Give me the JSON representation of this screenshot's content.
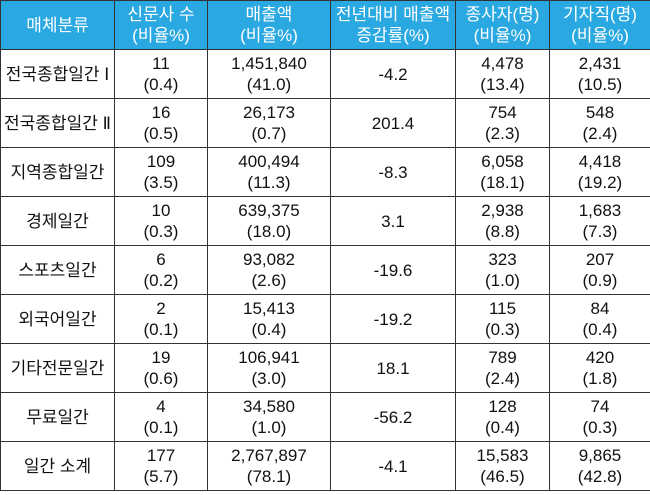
{
  "table": {
    "header": [
      [
        "매체분류"
      ],
      [
        "신문사 수",
        "(비율%)"
      ],
      [
        "매출액",
        "(비율%)"
      ],
      [
        "전년대비 매출액",
        "증감률(%)"
      ],
      [
        "종사자(명)",
        "(비율%)"
      ],
      [
        "기자직(명)",
        "(비율%)"
      ]
    ],
    "rows": [
      [
        [
          "전국종합일간 Ⅰ"
        ],
        [
          "11",
          "(0.4)"
        ],
        [
          "1,451,840",
          "(41.0)"
        ],
        [
          "-4.2"
        ],
        [
          "4,478",
          "(13.4)"
        ],
        [
          "2,431",
          "(10.5)"
        ]
      ],
      [
        [
          "전국종합일간 Ⅱ"
        ],
        [
          "16",
          "(0.5)"
        ],
        [
          "26,173",
          "(0.7)"
        ],
        [
          "201.4"
        ],
        [
          "754",
          "(2.3)"
        ],
        [
          "548",
          "(2.4)"
        ]
      ],
      [
        [
          "지역종합일간"
        ],
        [
          "109",
          "(3.5)"
        ],
        [
          "400,494",
          "(11.3)"
        ],
        [
          "-8.3"
        ],
        [
          "6,058",
          "(18.1)"
        ],
        [
          "4,418",
          "(19.2)"
        ]
      ],
      [
        [
          "경제일간"
        ],
        [
          "10",
          "(0.3)"
        ],
        [
          "639,375",
          "(18.0)"
        ],
        [
          "3.1"
        ],
        [
          "2,938",
          "(8.8)"
        ],
        [
          "1,683",
          "(7.3)"
        ]
      ],
      [
        [
          "스포츠일간"
        ],
        [
          "6",
          "(0.2)"
        ],
        [
          "93,082",
          "(2.6)"
        ],
        [
          "-19.6"
        ],
        [
          "323",
          "(1.0)"
        ],
        [
          "207",
          "(0.9)"
        ]
      ],
      [
        [
          "외국어일간"
        ],
        [
          "2",
          "(0.1)"
        ],
        [
          "15,413",
          "(0.4)"
        ],
        [
          "-19.2"
        ],
        [
          "115",
          "(0.3)"
        ],
        [
          "84",
          "(0.4)"
        ]
      ],
      [
        [
          "기타전문일간"
        ],
        [
          "19",
          "(0.6)"
        ],
        [
          "106,941",
          "(3.0)"
        ],
        [
          "18.1"
        ],
        [
          "789",
          "(2.4)"
        ],
        [
          "420",
          "(1.8)"
        ]
      ],
      [
        [
          "무료일간"
        ],
        [
          "4",
          "(0.1)"
        ],
        [
          "34,580",
          "(1.0)"
        ],
        [
          "-56.2"
        ],
        [
          "128",
          "(0.4)"
        ],
        [
          "74",
          "(0.3)"
        ]
      ],
      [
        [
          "일간 소계"
        ],
        [
          "177",
          "(5.7)"
        ],
        [
          "2,767,897",
          "(78.1)"
        ],
        [
          "-4.1"
        ],
        [
          "15,583",
          "(46.5)"
        ],
        [
          "9,865",
          "(42.8)"
        ]
      ]
    ]
  }
}
